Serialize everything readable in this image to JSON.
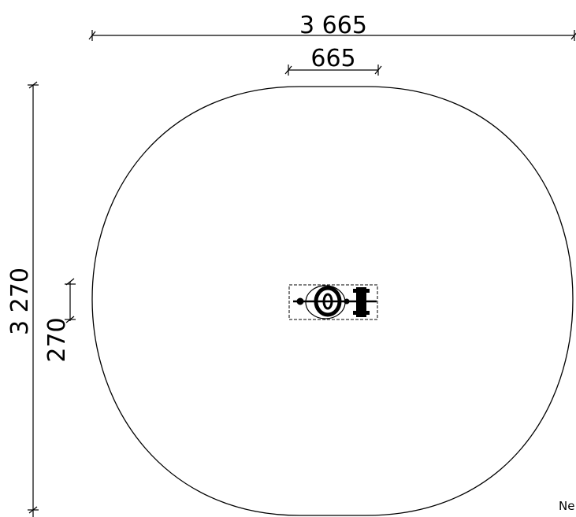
{
  "dimensions": {
    "overall_width": "3 665",
    "equipment_width": "665",
    "overall_height": "3 270",
    "equipment_height": "270"
  },
  "cutoff_label": "Ne"
}
